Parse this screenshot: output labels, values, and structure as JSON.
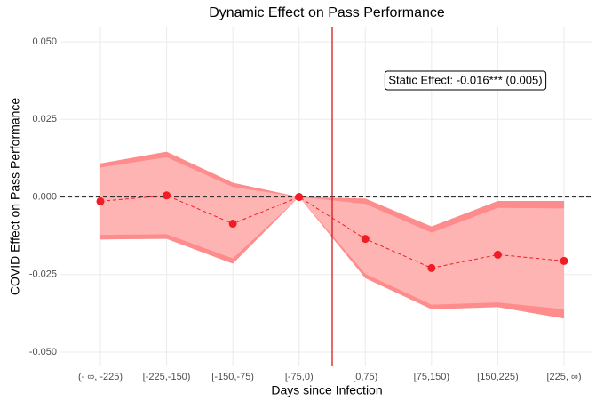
{
  "chart_data": {
    "type": "event_study",
    "title": "Dynamic Effect on Pass Performance",
    "x_label": "Days since Infection",
    "y_label": "COVID Effect on Pass Performance",
    "annotation": "Static Effect: -0.016*** (0.005)",
    "categories": [
      "(- ∞, -225)",
      "[-225,-150)",
      "[-150,-75)",
      "[-75,0)",
      "[0,75)",
      "[75,150)",
      "[150,225)",
      "[225, ∞)"
    ],
    "series": [
      {
        "color": "#f21c24",
        "values": [
          -0.0014,
          0.0005,
          -0.0086,
          0,
          -0.0135,
          -0.0229,
          -0.0186,
          -0.0206
        ],
        "ci_outer": {
          "color": "#ff8c8c",
          "upper": [
            0.0108,
            0.0146,
            0.0046,
            0,
            -0.0005,
            -0.0095,
            -0.0013,
            -0.0013
          ],
          "lower": [
            -0.0137,
            -0.0135,
            -0.0215,
            0,
            -0.0262,
            -0.0362,
            -0.0355,
            -0.0392
          ]
        },
        "ci_inner": {
          "color": "#ffb4b4",
          "upper": [
            0.0095,
            0.0128,
            0.0032,
            0,
            -0.0022,
            -0.0115,
            -0.0035,
            -0.0037
          ],
          "lower": [
            -0.0122,
            -0.012,
            -0.0198,
            0,
            -0.0248,
            -0.0347,
            -0.034,
            -0.0362
          ]
        }
      }
    ],
    "ylim": [
      -0.0546,
      0.0549
    ],
    "yticks": [
      {
        "value": -0.05,
        "label": "-0.050"
      },
      {
        "value": -0.025,
        "label": "-0.025"
      },
      {
        "value": 0,
        "label": "0.000"
      },
      {
        "value": 0.025,
        "label": "0.025"
      },
      {
        "value": 0.05,
        "label": "0.050"
      }
    ],
    "hline": 0,
    "vline_position": 3.5,
    "vline_color": "#d7191c",
    "grid": true
  }
}
